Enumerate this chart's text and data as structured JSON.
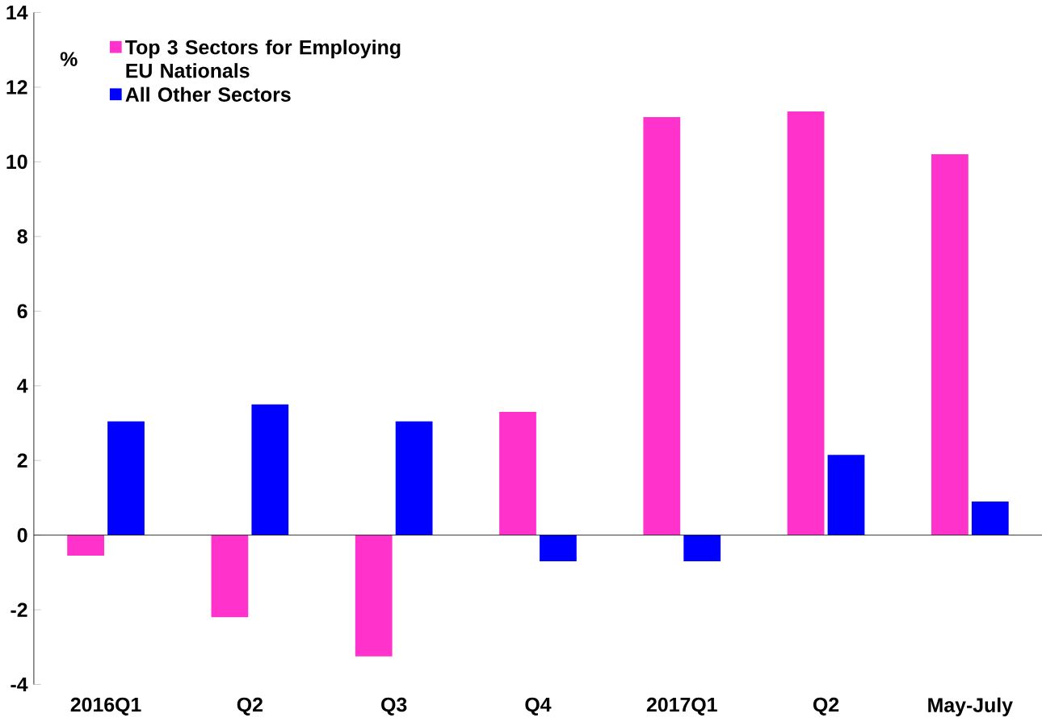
{
  "chart_data": {
    "type": "bar",
    "ylabel": "%",
    "categories": [
      "2016Q1",
      "Q2",
      "Q3",
      "Q4",
      "2017Q1",
      "Q2",
      "May-July"
    ],
    "series": [
      {
        "name": "Top 3 Sectors for Employing EU Nationals",
        "color": "#ff33cc",
        "values": [
          -0.55,
          -2.2,
          -3.25,
          3.3,
          11.2,
          11.35,
          10.2
        ]
      },
      {
        "name": "All Other Sectors",
        "color": "#0000ff",
        "values": [
          3.05,
          3.5,
          3.05,
          -0.7,
          -0.7,
          2.15,
          0.9
        ]
      }
    ],
    "ylim": [
      -4,
      14
    ],
    "yticks": [
      -4,
      -2,
      0,
      2,
      4,
      6,
      8,
      10,
      12,
      14
    ],
    "legend": "top left"
  }
}
